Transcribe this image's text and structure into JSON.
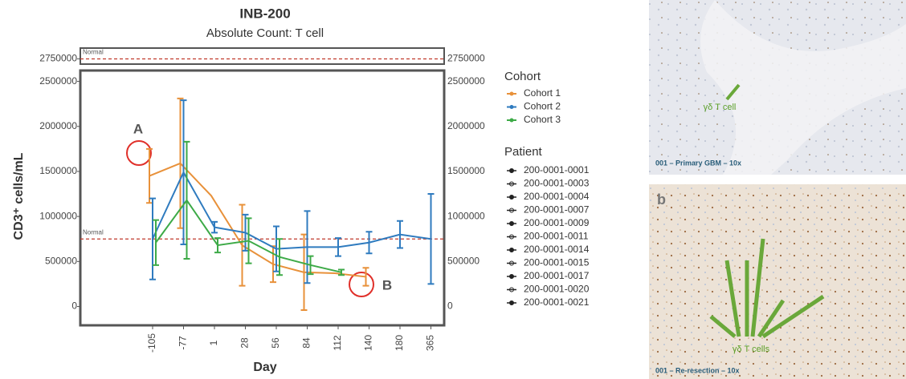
{
  "chart_data": {
    "type": "line",
    "title": "INB-200",
    "subtitle": "Absolute Count: T cell",
    "y_label": "CD3⁺ cells/mL",
    "x_label": "Day",
    "categories": [
      "-105",
      "-77",
      "1",
      "28",
      "56",
      "84",
      "112",
      "140",
      "180",
      "365"
    ],
    "ylim": [
      -200000,
      2870000
    ],
    "yticks": [
      0,
      500000,
      1000000,
      1500000,
      2000000,
      2500000,
      2750000
    ],
    "normal_lines": [
      {
        "value": 750000,
        "label": "Normal"
      },
      {
        "value": 2750000,
        "label": "Normal"
      }
    ],
    "legend_title": "Cohort",
    "series": [
      {
        "name": "Cohort 1",
        "color": "#e8913a",
        "values": [
          1450000,
          1590000,
          1230000,
          680000,
          470000,
          380000,
          370000,
          330000,
          null,
          null
        ],
        "errors": [
          300000,
          720000,
          null,
          450000,
          200000,
          420000,
          null,
          100000,
          null,
          null
        ]
      },
      {
        "name": "Cohort 2",
        "color": "#2f7bbf",
        "values": [
          750000,
          1490000,
          880000,
          820000,
          640000,
          660000,
          660000,
          710000,
          800000,
          750000
        ],
        "errors": [
          450000,
          800000,
          60000,
          200000,
          250000,
          400000,
          100000,
          120000,
          150000,
          500000
        ]
      },
      {
        "name": "Cohort 3",
        "color": "#3daa47",
        "values": [
          710000,
          1180000,
          680000,
          730000,
          550000,
          460000,
          380000,
          null,
          null,
          null
        ],
        "errors": [
          250000,
          650000,
          80000,
          250000,
          200000,
          100000,
          30000,
          null,
          null,
          null
        ]
      }
    ],
    "patient_legend_title": "Patient",
    "patients": [
      "200-0001-0001",
      "200-0001-0003",
      "200-0001-0004",
      "200-0001-0007",
      "200-0001-0009",
      "200-0001-0011",
      "200-0001-0014",
      "200-0001-0015",
      "200-0001-0017",
      "200-0001-0020",
      "200-0001-0021"
    ],
    "annotations": [
      "A",
      "B"
    ]
  },
  "images": [
    {
      "label": "γδ T cell",
      "caption": "001 – Primary GBM – 10x"
    },
    {
      "panel": "b",
      "label": "γδ T cells",
      "caption": "001 – Re-resection – 10x"
    }
  ]
}
